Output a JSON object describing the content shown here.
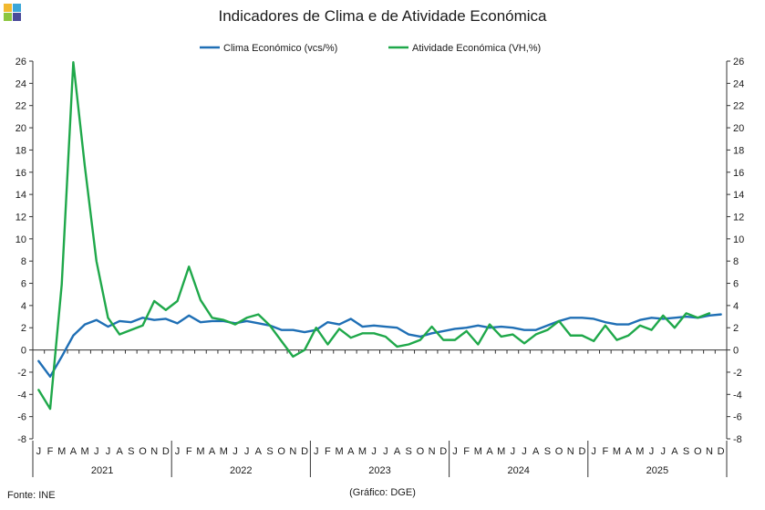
{
  "title": "Indicadores de Clima e de Atividade Económica",
  "source": "Fonte: INE",
  "credit": "(Gráfico: DGE)",
  "logo_colors": [
    "#f2b92f",
    "#3aa6d9",
    "#8cc63f",
    "#4a4a9a"
  ],
  "chart_data": {
    "type": "line",
    "title": "Indicadores de Clima e de Atividade Económica",
    "xlabel": "",
    "ylabel": "",
    "ylim": [
      -8,
      26
    ],
    "y_ticks": [
      -8,
      -6,
      -4,
      -2,
      0,
      2,
      4,
      6,
      8,
      10,
      12,
      14,
      16,
      18,
      20,
      22,
      24,
      26
    ],
    "months": [
      "J",
      "F",
      "M",
      "A",
      "M",
      "J",
      "J",
      "A",
      "S",
      "O",
      "N",
      "D"
    ],
    "years": [
      "2021",
      "2022",
      "2023",
      "2024",
      "2025"
    ],
    "grid": false,
    "legend_position": "top-center",
    "series": [
      {
        "name": "Clima Económico (vcs/%)",
        "color": "#1f6fb5",
        "values": [
          -1.0,
          -2.4,
          -0.6,
          1.3,
          2.3,
          2.7,
          2.1,
          2.6,
          2.5,
          2.9,
          2.7,
          2.8,
          2.4,
          3.1,
          2.5,
          2.6,
          2.6,
          2.4,
          2.6,
          2.4,
          2.2,
          1.8,
          1.8,
          1.6,
          1.8,
          2.5,
          2.3,
          2.8,
          2.1,
          2.2,
          2.1,
          2.0,
          1.4,
          1.2,
          1.5,
          1.7,
          1.9,
          2.0,
          2.2,
          2.0,
          2.1,
          2.0,
          1.8,
          1.8,
          2.2,
          2.6,
          2.9,
          2.9,
          2.8,
          2.5,
          2.3,
          2.3,
          2.7,
          2.9,
          2.8,
          2.9,
          3.0,
          2.9,
          3.1,
          3.2
        ]
      },
      {
        "name": "Atividade Económica (VH,%)",
        "color": "#1fa84a",
        "values": [
          -3.6,
          -5.3,
          5.9,
          25.9,
          16.5,
          8.0,
          2.9,
          1.4,
          1.8,
          2.2,
          4.4,
          3.6,
          4.4,
          7.5,
          4.5,
          2.9,
          2.7,
          2.3,
          2.9,
          3.2,
          2.2,
          0.8,
          -0.6,
          0.0,
          2.0,
          0.5,
          1.9,
          1.1,
          1.5,
          1.5,
          1.2,
          0.3,
          0.5,
          0.9,
          2.1,
          0.9,
          0.9,
          1.7,
          0.5,
          2.3,
          1.2,
          1.4,
          0.6,
          1.4,
          1.8,
          2.6,
          1.3,
          1.3,
          0.8,
          2.2,
          0.9,
          1.3,
          2.2,
          1.8,
          3.1,
          2.0,
          3.3,
          2.9,
          3.3,
          null
        ]
      }
    ]
  }
}
